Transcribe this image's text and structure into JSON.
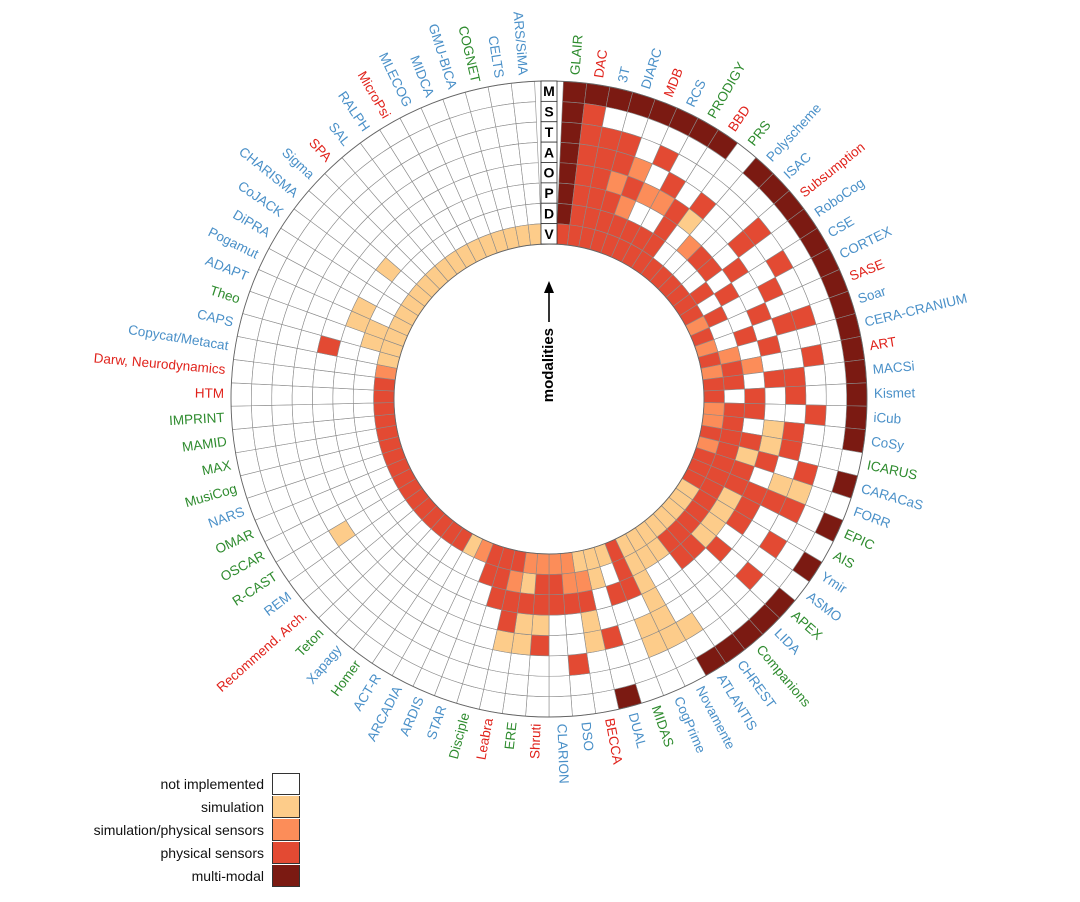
{
  "chart_data": {
    "type": "radial-heatmap",
    "title": "",
    "axis_label": "modalities",
    "modalities": [
      "M",
      "S",
      "T",
      "A",
      "O",
      "P",
      "D",
      "V"
    ],
    "categories": [
      {
        "value": 0,
        "label": "not implemented",
        "color": "#ffffff"
      },
      {
        "value": 1,
        "label": "simulation",
        "color": "#fdcc8a"
      },
      {
        "value": 2,
        "label": "simulation/physical sensors",
        "color": "#fc8d59"
      },
      {
        "value": 3,
        "label": "physical sensors",
        "color": "#e34a33"
      },
      {
        "value": 4,
        "label": "multi-modal",
        "color": "#7b1a12"
      }
    ],
    "group_colors": {
      "blue": "#4a90c8",
      "red": "#e0221b",
      "green": "#2e8b2e"
    },
    "architectures": [
      {
        "name": "GLAIR",
        "group": "green",
        "cells": "44444443"
      },
      {
        "name": "DAC",
        "group": "red",
        "cells": "43333333"
      },
      {
        "name": "3T",
        "group": "blue",
        "cells": "40333333"
      },
      {
        "name": "DIARC",
        "group": "blue",
        "cells": "40332333"
      },
      {
        "name": "MDB",
        "group": "red",
        "cells": "40023233"
      },
      {
        "name": "RCS",
        "group": "blue",
        "cells": "40302033"
      },
      {
        "name": "PRODIGY",
        "group": "green",
        "cells": "40032033"
      },
      {
        "name": "BBD",
        "group": "red",
        "cells": "40003333"
      },
      {
        "name": "PRS",
        "group": "green",
        "cells": "00031003"
      },
      {
        "name": "Polyscheme",
        "group": "blue",
        "cells": "40000203"
      },
      {
        "name": "ISAC",
        "group": "blue",
        "cells": "40000303"
      },
      {
        "name": "Subsumption",
        "group": "red",
        "cells": "40330303"
      },
      {
        "name": "RoboCog",
        "group": "blue",
        "cells": "40003033"
      },
      {
        "name": "CSE",
        "group": "blue",
        "cells": "40300303"
      },
      {
        "name": "CORTEX",
        "group": "blue",
        "cells": "40030032"
      },
      {
        "name": "SASE",
        "group": "red",
        "cells": "40003003"
      },
      {
        "name": "Soar",
        "group": "blue",
        "cells": "40330302"
      },
      {
        "name": "CERA-CRANIUM",
        "group": "blue",
        "cells": "40003023"
      },
      {
        "name": "ART",
        "group": "red",
        "cells": "40300232"
      },
      {
        "name": "MACSi",
        "group": "blue",
        "cells": "40033033"
      },
      {
        "name": "Kismet",
        "group": "blue",
        "cells": "40030303"
      },
      {
        "name": "iCub",
        "group": "blue",
        "cells": "40300332"
      },
      {
        "name": "CoSy",
        "group": "blue",
        "cells": "40031032"
      },
      {
        "name": "ICARUS",
        "group": "green",
        "cells": "00031333"
      },
      {
        "name": "CARACaS",
        "group": "blue",
        "cells": "40303132"
      },
      {
        "name": "FORR",
        "group": "blue",
        "cells": "00110333"
      },
      {
        "name": "EPIC",
        "group": "green",
        "cells": "40333333"
      },
      {
        "name": "AIS",
        "group": "green",
        "cells": "00003133"
      },
      {
        "name": "Ymir",
        "group": "blue",
        "cells": "40303131"
      },
      {
        "name": "ASMO",
        "group": "blue",
        "cells": "00000131"
      },
      {
        "name": "APEX",
        "group": "green",
        "cells": "40303131"
      },
      {
        "name": "LIDA",
        "group": "blue",
        "cells": "40000331"
      },
      {
        "name": "Companions",
        "group": "green",
        "cells": "40000331"
      },
      {
        "name": "CHREST",
        "group": "blue",
        "cells": "40000011"
      },
      {
        "name": "ATLANTIS",
        "group": "blue",
        "cells": "40100011"
      },
      {
        "name": "Novamente",
        "group": "blue",
        "cells": "00111111"
      },
      {
        "name": "CogPrime",
        "group": "blue",
        "cells": "00110333"
      },
      {
        "name": "MIDAS",
        "group": "green",
        "cells": "00000301"
      },
      {
        "name": "DUAL",
        "group": "blue",
        "cells": "40030011"
      },
      {
        "name": "BECCA",
        "group": "red",
        "cells": "00011321"
      },
      {
        "name": "DSO",
        "group": "blue",
        "cells": "00300322"
      },
      {
        "name": "CLARION",
        "group": "blue",
        "cells": "00000332"
      },
      {
        "name": "Shruti",
        "group": "red",
        "cells": "00031332"
      },
      {
        "name": "ERE",
        "group": "green",
        "cells": "00011312"
      },
      {
        "name": "Leabra",
        "group": "red",
        "cells": "00013323"
      },
      {
        "name": "Disciple",
        "group": "green",
        "cells": "00000333"
      },
      {
        "name": "STAR",
        "group": "blue",
        "cells": "00000033"
      },
      {
        "name": "ARDIS",
        "group": "blue",
        "cells": "00000002"
      },
      {
        "name": "ARCADIA",
        "group": "blue",
        "cells": "00000001"
      },
      {
        "name": "ACT-R",
        "group": "blue",
        "cells": "00000003"
      },
      {
        "name": "Homer",
        "group": "green",
        "cells": "00000003"
      },
      {
        "name": "Xapagy",
        "group": "blue",
        "cells": "00000003"
      },
      {
        "name": "Teton",
        "group": "green",
        "cells": "00000003"
      },
      {
        "name": "Recommend. Arch.",
        "group": "red",
        "cells": "00000003"
      },
      {
        "name": "REM",
        "group": "blue",
        "cells": "00000003"
      },
      {
        "name": "R-CAST",
        "group": "green",
        "cells": "00010003"
      },
      {
        "name": "OSCAR",
        "group": "green",
        "cells": "00000003"
      },
      {
        "name": "OMAR",
        "group": "green",
        "cells": "00000003"
      },
      {
        "name": "NARS",
        "group": "blue",
        "cells": "00000003"
      },
      {
        "name": "MusiCog",
        "group": "green",
        "cells": "00000003"
      },
      {
        "name": "MAX",
        "group": "green",
        "cells": "00000003"
      },
      {
        "name": "MAMID",
        "group": "green",
        "cells": "00000003"
      },
      {
        "name": "IMPRINT",
        "group": "green",
        "cells": "00000003"
      },
      {
        "name": "HTM",
        "group": "red",
        "cells": "00000003"
      },
      {
        "name": "Darw, Neurodynamics",
        "group": "red",
        "cells": "00000003"
      },
      {
        "name": "Copycat/Metacat",
        "group": "blue",
        "cells": "00000002"
      },
      {
        "name": "CAPS",
        "group": "blue",
        "cells": "00003001"
      },
      {
        "name": "Theo",
        "group": "green",
        "cells": "00000011"
      },
      {
        "name": "ADAPT",
        "group": "blue",
        "cells": "00000111"
      },
      {
        "name": "Pogamut",
        "group": "blue",
        "cells": "00000101"
      },
      {
        "name": "DiPRA",
        "group": "blue",
        "cells": "00000001"
      },
      {
        "name": "CoJACK",
        "group": "blue",
        "cells": "00000001"
      },
      {
        "name": "CHARISMA",
        "group": "blue",
        "cells": "00000101"
      },
      {
        "name": "Sigma",
        "group": "blue",
        "cells": "00000001"
      },
      {
        "name": "SPA",
        "group": "red",
        "cells": "00000001"
      },
      {
        "name": "SAL",
        "group": "blue",
        "cells": "00000001"
      },
      {
        "name": "RALPH",
        "group": "blue",
        "cells": "00000001"
      },
      {
        "name": "MicroPsi",
        "group": "red",
        "cells": "00000001"
      },
      {
        "name": "MLECOG",
        "group": "blue",
        "cells": "00000001"
      },
      {
        "name": "MIDCA",
        "group": "blue",
        "cells": "00000001"
      },
      {
        "name": "GMU-BICA",
        "group": "blue",
        "cells": "00000001"
      },
      {
        "name": "COGNET",
        "group": "green",
        "cells": "00000001"
      },
      {
        "name": "CELTS",
        "group": "blue",
        "cells": "00000001"
      },
      {
        "name": "ARS/SiMA",
        "group": "blue",
        "cells": "00000001"
      }
    ]
  }
}
